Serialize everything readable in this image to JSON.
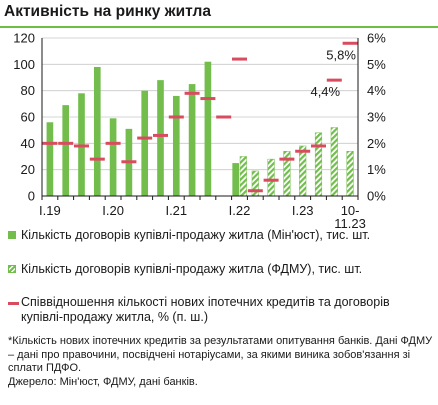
{
  "title": "Активність на ринку житла",
  "legend": {
    "minjust": "Кількість договорів купівлі-продажу житла (Мін'юст), тис. шт.",
    "fdmu": "Кількість договорів купівлі-продажу житла (ФДМУ), тис. шт.",
    "ratio": "Співвідношення кількості нових іпотечних кредитів та договорів купівлі-продажу житла, % (п. ш.)"
  },
  "notes": {
    "note": "*Кількість нових іпотечних кредитів за результатами опитування банків. Дані ФДМУ – дані про правочини, посвідчені нотаріусами, за якими виника зобов'язання зі сплати ПДФО.",
    "source": "Джерело: Мін'юст, ФДМУ, дані банків."
  },
  "colors": {
    "bars": "#72bd4c",
    "ratio": "#d94b5e",
    "grid": "#c8c8c8"
  },
  "chart_data": {
    "type": "bar",
    "x": [
      "I.19",
      "II.19",
      "III.19",
      "IV.19",
      "I.20",
      "II.20",
      "III.20",
      "IV.20",
      "I.21",
      "II.21",
      "III.21",
      "IV.21",
      "I.22",
      "II.22",
      "III.22",
      "IV.22",
      "I.23",
      "II.23",
      "III.23",
      "10-11.23"
    ],
    "x_tick_labels": [
      "I.19",
      "I.20",
      "I.21",
      "I.22",
      "I.23",
      "10-\n11.23"
    ],
    "y_left": {
      "range": [
        0,
        120
      ],
      "ticks": [
        0,
        20,
        40,
        60,
        80,
        100,
        120
      ]
    },
    "y_right": {
      "range": [
        0,
        6
      ],
      "ticks": [
        "0%",
        "1%",
        "2%",
        "3%",
        "4%",
        "5%",
        "6%"
      ]
    },
    "series": [
      {
        "name": "Кількість договорів купівлі-продажу житла (Мін'юст), тис. шт.",
        "axis": "left",
        "kind": "bar",
        "values": [
          56,
          69,
          78,
          98,
          59,
          51,
          80,
          88,
          76,
          85,
          102,
          null,
          25,
          null,
          null,
          null,
          null,
          null,
          null,
          null
        ]
      },
      {
        "name": "Кількість договорів купівлі-продажу житла (ФДМУ), тис. шт.",
        "axis": "left",
        "kind": "bar-hatched",
        "values": [
          null,
          null,
          null,
          null,
          null,
          null,
          null,
          null,
          null,
          null,
          null,
          null,
          30,
          19,
          28,
          34,
          38,
          48,
          52,
          34
        ]
      },
      {
        "name": "Співвідношення кількості нових іпотечних кредитів та договорів купівлі-продажу житла, % (п. ш.)",
        "axis": "right",
        "kind": "marker",
        "values": [
          2.0,
          2.0,
          1.9,
          1.4,
          2.0,
          1.3,
          2.2,
          2.3,
          3.0,
          3.9,
          3.7,
          3.0,
          5.2,
          0.2,
          0.6,
          1.4,
          1.7,
          1.9,
          4.4,
          5.8
        ]
      }
    ],
    "data_labels": [
      {
        "series": 2,
        "index": 18,
        "text": "4,4%"
      },
      {
        "series": 2,
        "index": 19,
        "text": "5,8%"
      }
    ],
    "grid": "horizontal",
    "legend_position": "bottom"
  }
}
